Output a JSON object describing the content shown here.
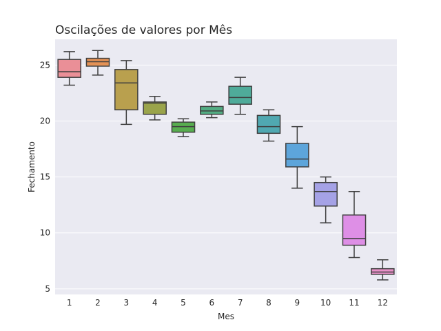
{
  "chart_data": {
    "type": "box",
    "title": "Oscilações de valores por Mês",
    "xlabel": "Mes",
    "ylabel": "Fechamento",
    "categories": [
      "1",
      "2",
      "3",
      "4",
      "5",
      "6",
      "7",
      "8",
      "9",
      "10",
      "11",
      "12"
    ],
    "yticks": [
      5,
      10,
      15,
      20,
      25
    ],
    "ylim": [
      4.5,
      27.3
    ],
    "grid": true,
    "boxes": [
      {
        "min": 23.2,
        "q1": 23.9,
        "median": 24.4,
        "q3": 25.5,
        "max": 26.2,
        "color": "#ea8f97"
      },
      {
        "min": 24.1,
        "q1": 24.9,
        "median": 25.3,
        "q3": 25.6,
        "max": 26.3,
        "color": "#e39155"
      },
      {
        "min": 19.7,
        "q1": 21.0,
        "median": 23.4,
        "q3": 24.6,
        "max": 25.4,
        "color": "#b9a04e"
      },
      {
        "min": 20.1,
        "q1": 20.6,
        "median": 21.6,
        "q3": 21.7,
        "max": 22.2,
        "color": "#9aa44b"
      },
      {
        "min": 18.6,
        "q1": 19.0,
        "median": 19.5,
        "q3": 19.9,
        "max": 20.2,
        "color": "#57ad4f"
      },
      {
        "min": 20.3,
        "q1": 20.6,
        "median": 20.9,
        "q3": 21.3,
        "max": 21.7,
        "color": "#52ac83"
      },
      {
        "min": 20.6,
        "q1": 21.5,
        "median": 22.1,
        "q3": 23.1,
        "max": 23.9,
        "color": "#4fab9a"
      },
      {
        "min": 18.2,
        "q1": 18.9,
        "median": 19.5,
        "q3": 20.5,
        "max": 21.0,
        "color": "#50a8b1"
      },
      {
        "min": 14.0,
        "q1": 15.9,
        "median": 16.6,
        "q3": 18.0,
        "max": 19.5,
        "color": "#5da5db"
      },
      {
        "min": 10.9,
        "q1": 12.4,
        "median": 13.7,
        "q3": 14.5,
        "max": 15.0,
        "color": "#a5a2e6"
      },
      {
        "min": 7.8,
        "q1": 8.9,
        "median": 9.5,
        "q3": 11.6,
        "max": 13.7,
        "color": "#de8fe6"
      },
      {
        "min": 5.8,
        "q1": 6.3,
        "median": 6.5,
        "q3": 6.8,
        "max": 7.6,
        "color": "#e991c8"
      }
    ]
  }
}
